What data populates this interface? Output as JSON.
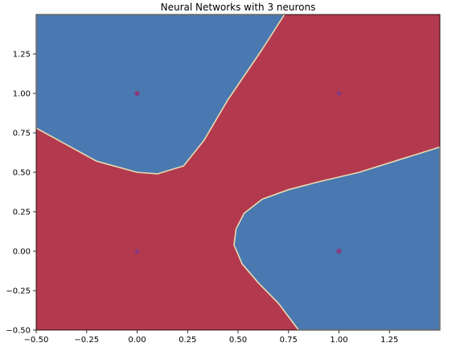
{
  "chart_data": {
    "type": "heatmap",
    "title": "Neural Networks with 3 neurons",
    "xlabel": "",
    "ylabel": "",
    "xlim": [
      -0.5,
      1.5
    ],
    "ylim": [
      -0.5,
      1.5
    ],
    "x_ticks": [
      -0.5,
      -0.25,
      0.0,
      0.25,
      0.5,
      0.75,
      1.0,
      1.25
    ],
    "x_tick_labels": [
      "−0.50",
      "−0.25",
      "0.00",
      "0.25",
      "0.50",
      "0.75",
      "1.00",
      "1.25"
    ],
    "y_ticks": [
      -0.5,
      -0.25,
      0.0,
      0.25,
      0.5,
      0.75,
      1.0,
      1.25
    ],
    "y_tick_labels": [
      "−0.50",
      "−0.25",
      "0.00",
      "0.25",
      "0.50",
      "0.75",
      "1.00",
      "1.25"
    ],
    "grid": false,
    "class_colors": {
      "class_0": "#4a78b0",
      "class_1": "#b3394e"
    },
    "boundary_color": "#e8dcb0",
    "regions": [
      {
        "class": "class_0",
        "polygon": [
          [
            -0.5,
            1.5
          ],
          [
            0.73,
            1.5
          ],
          [
            0.62,
            1.28
          ],
          [
            0.45,
            0.96
          ],
          [
            0.33,
            0.7
          ],
          [
            0.23,
            0.54
          ],
          [
            0.1,
            0.49
          ],
          [
            0.0,
            0.5
          ],
          [
            -0.2,
            0.57
          ],
          [
            -0.4,
            0.71
          ],
          [
            -0.5,
            0.78
          ]
        ]
      },
      {
        "class": "class_0",
        "polygon": [
          [
            1.5,
            0.66
          ],
          [
            1.3,
            0.58
          ],
          [
            1.1,
            0.5
          ],
          [
            0.9,
            0.44
          ],
          [
            0.75,
            0.39
          ],
          [
            0.62,
            0.33
          ],
          [
            0.53,
            0.24
          ],
          [
            0.49,
            0.14
          ],
          [
            0.48,
            0.04
          ],
          [
            0.52,
            -0.08
          ],
          [
            0.6,
            -0.2
          ],
          [
            0.7,
            -0.33
          ],
          [
            0.8,
            -0.5
          ],
          [
            1.5,
            -0.5
          ]
        ]
      }
    ],
    "points": [
      {
        "x": 0.0,
        "y": 1.0,
        "class": "class_0"
      },
      {
        "x": 1.0,
        "y": 1.0,
        "class": "class_1"
      },
      {
        "x": 0.0,
        "y": 0.0,
        "class": "class_1"
      },
      {
        "x": 1.0,
        "y": 0.0,
        "class": "class_0"
      }
    ],
    "point_color": "#8a3a78"
  }
}
